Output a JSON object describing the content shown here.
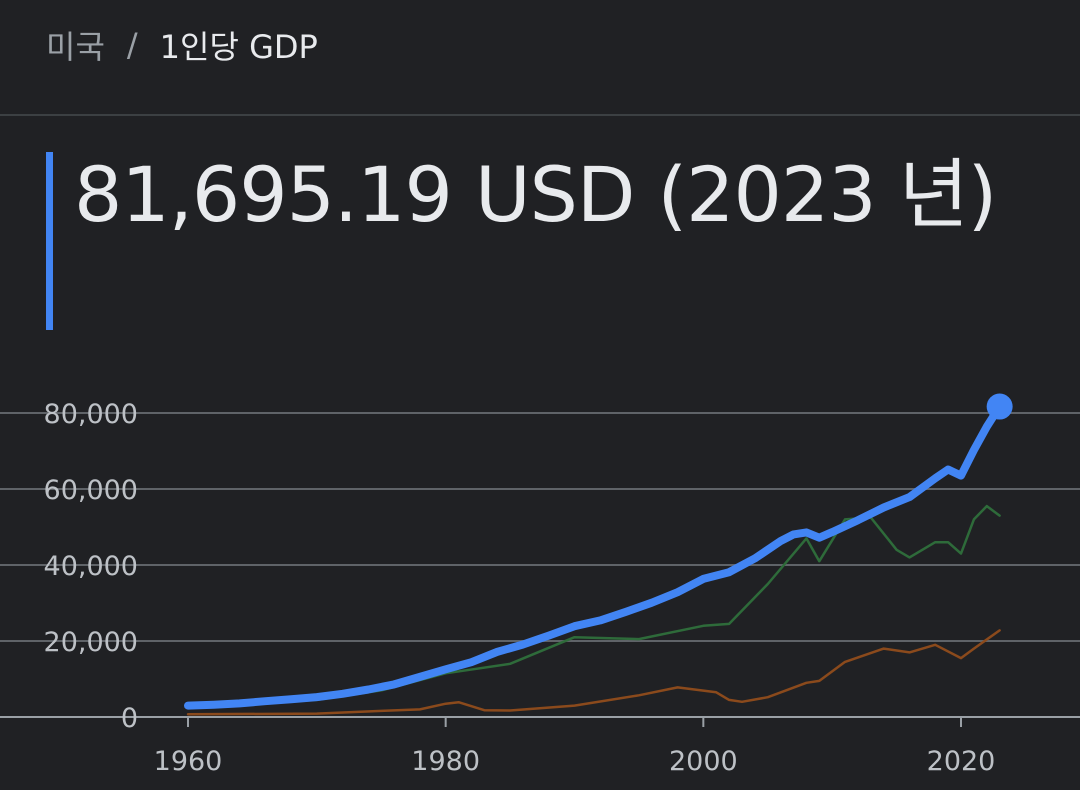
{
  "breadcrumb": {
    "country": "미국",
    "separator": "/",
    "metric": "1인당 GDP"
  },
  "headline": {
    "value_text": "81,695.19 USD (2023 년)",
    "accent_color": "#4285f4"
  },
  "chart_data": {
    "type": "line",
    "title": "",
    "xlabel": "",
    "ylabel": "",
    "xlim": [
      1955,
      2030
    ],
    "ylim": [
      0,
      80000
    ],
    "x_ticks": [
      1960,
      1980,
      2000,
      2020
    ],
    "x_tick_labels": [
      "1960",
      "1980",
      "2000",
      "2020"
    ],
    "y_ticks": [
      0,
      20000,
      40000,
      60000,
      80000
    ],
    "y_tick_labels": [
      "0",
      "20,000",
      "40,000",
      "60,000",
      "80,000"
    ],
    "grid": "horizontal",
    "legend": "none",
    "series": [
      {
        "color": "#2e6b3a",
        "emphasis": false,
        "points": [
          [
            1960,
            3000
          ],
          [
            1965,
            3500
          ],
          [
            1970,
            4500
          ],
          [
            1975,
            7000
          ],
          [
            1980,
            11500
          ],
          [
            1985,
            14000
          ],
          [
            1990,
            21000
          ],
          [
            1995,
            20500
          ],
          [
            2000,
            24000
          ],
          [
            2002,
            24500
          ],
          [
            2005,
            35000
          ],
          [
            2008,
            47000
          ],
          [
            2009,
            41000
          ],
          [
            2011,
            52000
          ],
          [
            2013,
            52500
          ],
          [
            2015,
            44000
          ],
          [
            2016,
            42000
          ],
          [
            2018,
            46000
          ],
          [
            2019,
            46000
          ],
          [
            2020,
            43000
          ],
          [
            2021,
            52000
          ],
          [
            2022,
            55500
          ],
          [
            2023,
            53000
          ]
        ]
      },
      {
        "color": "#8b4a1c",
        "emphasis": false,
        "points": [
          [
            1960,
            700
          ],
          [
            1970,
            900
          ],
          [
            1975,
            1600
          ],
          [
            1978,
            2000
          ],
          [
            1980,
            3500
          ],
          [
            1981,
            3900
          ],
          [
            1983,
            1800
          ],
          [
            1985,
            1700
          ],
          [
            1990,
            3000
          ],
          [
            1995,
            5700
          ],
          [
            1998,
            7800
          ],
          [
            2001,
            6500
          ],
          [
            2002,
            4500
          ],
          [
            2003,
            4000
          ],
          [
            2005,
            5200
          ],
          [
            2008,
            9000
          ],
          [
            2009,
            9500
          ],
          [
            2011,
            14500
          ],
          [
            2014,
            18000
          ],
          [
            2016,
            17000
          ],
          [
            2018,
            19000
          ],
          [
            2020,
            15500
          ],
          [
            2021,
            18000
          ],
          [
            2023,
            22800
          ]
        ]
      },
      {
        "color": "#4285f4",
        "emphasis": true,
        "points": [
          [
            1960,
            3007
          ],
          [
            1962,
            3243
          ],
          [
            1964,
            3574
          ],
          [
            1966,
            4147
          ],
          [
            1968,
            4695
          ],
          [
            1970,
            5234
          ],
          [
            1972,
            6094
          ],
          [
            1974,
            7242
          ],
          [
            1976,
            8592
          ],
          [
            1978,
            10565
          ],
          [
            1980,
            12553
          ],
          [
            1982,
            14433
          ],
          [
            1984,
            17121
          ],
          [
            1986,
            19071
          ],
          [
            1988,
            21417
          ],
          [
            1990,
            23889
          ],
          [
            1992,
            25419
          ],
          [
            1994,
            27695
          ],
          [
            1996,
            30068
          ],
          [
            1998,
            32854
          ],
          [
            2000,
            36330
          ],
          [
            2002,
            38114
          ],
          [
            2004,
            41725
          ],
          [
            2006,
            46302
          ],
          [
            2007,
            48050
          ],
          [
            2008,
            48570
          ],
          [
            2009,
            47195
          ],
          [
            2010,
            48651
          ],
          [
            2012,
            51784
          ],
          [
            2014,
            55123
          ],
          [
            2016,
            57867
          ],
          [
            2018,
            62823
          ],
          [
            2019,
            65120
          ],
          [
            2020,
            63528
          ],
          [
            2021,
            70249
          ],
          [
            2022,
            76399
          ],
          [
            2023,
            81695
          ]
        ]
      }
    ],
    "highlight_point": [
      2023,
      81695.19
    ]
  }
}
